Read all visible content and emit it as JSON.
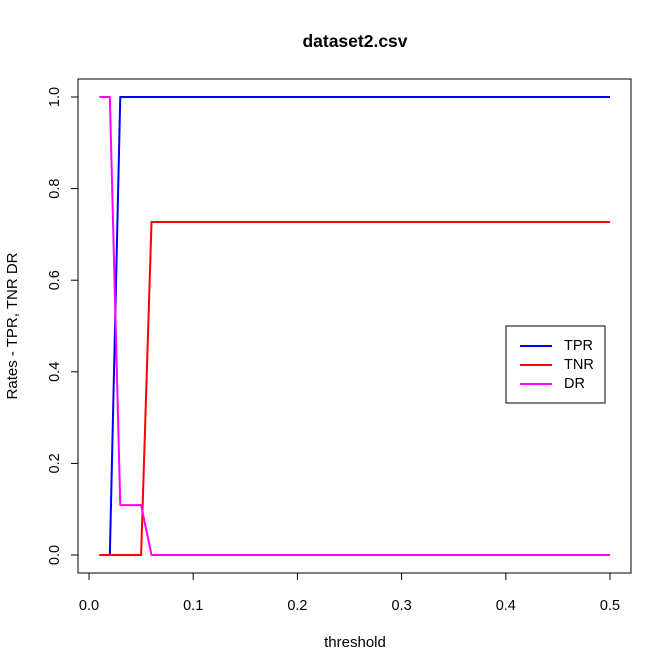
{
  "chart_data": {
    "type": "line",
    "title": "dataset2.csv",
    "xlabel": "threshold",
    "ylabel": "Rates - TPR, TNR DR",
    "xlim": [
      0.0,
      0.5
    ],
    "ylim": [
      0.0,
      1.0
    ],
    "x_ticks": [
      0.0,
      0.1,
      0.2,
      0.3,
      0.4,
      0.5
    ],
    "x_tick_labels": [
      "0.0",
      "0.1",
      "0.2",
      "0.3",
      "0.4",
      "0.5"
    ],
    "y_ticks": [
      0.0,
      0.2,
      0.4,
      0.6,
      0.8,
      1.0
    ],
    "y_tick_labels": [
      "0.0",
      "0.2",
      "0.4",
      "0.6",
      "0.8",
      "1.0"
    ],
    "grid": false,
    "legend_position": "right",
    "series": [
      {
        "name": "TPR",
        "color": "#0000ff",
        "x": [
          0.01,
          0.02,
          0.03,
          0.04,
          0.05,
          0.06,
          0.07,
          0.08,
          0.09,
          0.1,
          0.2,
          0.3,
          0.4,
          0.5
        ],
        "values": [
          0,
          0,
          1,
          1,
          1,
          1,
          1,
          1,
          1,
          1,
          1,
          1,
          1,
          1
        ]
      },
      {
        "name": "TNR",
        "color": "#ff0000",
        "x": [
          0.01,
          0.02,
          0.03,
          0.04,
          0.05,
          0.06,
          0.07,
          0.08,
          0.09,
          0.1,
          0.2,
          0.3,
          0.4,
          0.5
        ],
        "values": [
          0,
          0,
          0,
          0,
          0,
          0.727,
          0.727,
          0.727,
          0.727,
          0.727,
          0.727,
          0.727,
          0.727,
          0.727
        ]
      },
      {
        "name": "DR",
        "color": "#ff00ff",
        "x": [
          0.01,
          0.02,
          0.03,
          0.04,
          0.05,
          0.06,
          0.07,
          0.08,
          0.09,
          0.1,
          0.2,
          0.3,
          0.4,
          0.5
        ],
        "values": [
          1,
          1,
          0.109,
          0.109,
          0.109,
          0,
          0,
          0,
          0,
          0,
          0,
          0,
          0,
          0
        ]
      }
    ]
  }
}
